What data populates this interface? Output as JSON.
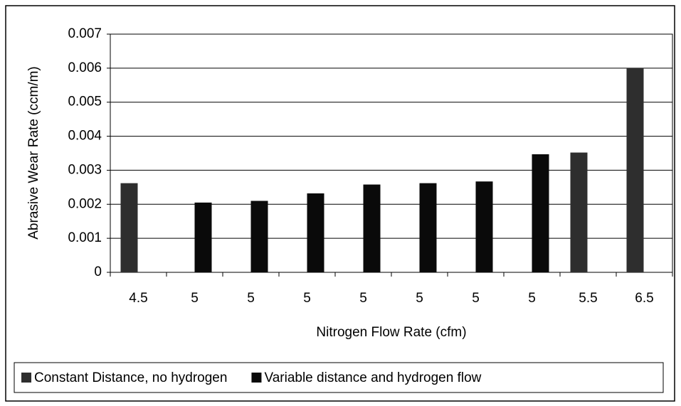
{
  "chart_data": {
    "type": "bar",
    "x_label": "Nitrogen Flow Rate (cfm)",
    "y_label": "Abrasive Wear Rate (ccm/m)",
    "categories": [
      "4.5",
      "5",
      "5",
      "5",
      "5",
      "5",
      "5",
      "5",
      "5.5",
      "6.5"
    ],
    "series": [
      {
        "name": "Constant Distance, no hydrogen",
        "color": "#2e2e2e",
        "values": [
          0.00262,
          null,
          null,
          null,
          null,
          null,
          null,
          null,
          0.00352,
          0.006
        ]
      },
      {
        "name": "Variable distance and hydrogen flow",
        "color": "#0a0a0a",
        "values": [
          null,
          0.00205,
          0.0021,
          0.00232,
          0.00258,
          0.00262,
          0.00267,
          0.00347,
          null,
          null
        ]
      }
    ],
    "ylim": [
      0,
      0.007
    ],
    "yticks": [
      0,
      0.001,
      0.002,
      0.003,
      0.004,
      0.005,
      0.006,
      0.007
    ],
    "grid": true,
    "legend": "bottom"
  }
}
